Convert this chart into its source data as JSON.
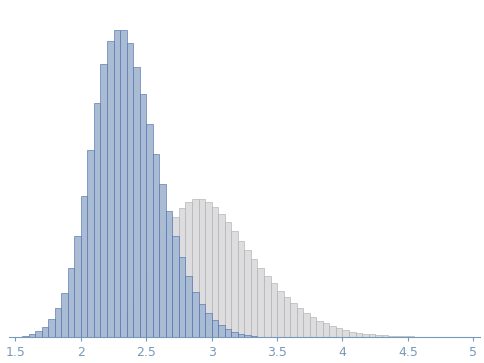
{
  "blue_hist": {
    "bins": [
      1.55,
      1.6,
      1.65,
      1.7,
      1.75,
      1.8,
      1.85,
      1.9,
      1.95,
      2.0,
      2.05,
      2.1,
      2.15,
      2.2,
      2.25,
      2.3,
      2.35,
      2.4,
      2.45,
      2.5,
      2.55,
      2.6,
      2.65,
      2.7,
      2.75,
      2.8,
      2.85,
      2.9,
      2.95,
      3.0,
      3.05,
      3.1,
      3.15,
      3.2,
      3.25,
      3.3
    ],
    "heights": [
      0.002,
      0.006,
      0.012,
      0.022,
      0.038,
      0.062,
      0.095,
      0.148,
      0.218,
      0.305,
      0.405,
      0.505,
      0.59,
      0.64,
      0.665,
      0.665,
      0.635,
      0.585,
      0.525,
      0.46,
      0.395,
      0.33,
      0.272,
      0.218,
      0.172,
      0.132,
      0.098,
      0.072,
      0.052,
      0.036,
      0.025,
      0.016,
      0.01,
      0.006,
      0.004,
      0.002
    ],
    "face_color": "#aabbd4",
    "edge_color": "#4466aa",
    "alpha": 1.0
  },
  "gray_hist": {
    "bins": [
      2.3,
      2.35,
      2.4,
      2.45,
      2.5,
      2.55,
      2.6,
      2.65,
      2.7,
      2.75,
      2.8,
      2.85,
      2.9,
      2.95,
      3.0,
      3.05,
      3.1,
      3.15,
      3.2,
      3.25,
      3.3,
      3.35,
      3.4,
      3.45,
      3.5,
      3.55,
      3.6,
      3.65,
      3.7,
      3.75,
      3.8,
      3.85,
      3.9,
      3.95,
      4.0,
      4.05,
      4.1,
      4.15,
      4.2,
      4.25,
      4.3,
      4.35,
      4.4,
      4.45,
      4.5,
      4.55,
      4.6,
      4.65,
      4.7,
      4.75,
      4.8
    ],
    "heights": [
      0.025,
      0.048,
      0.075,
      0.105,
      0.138,
      0.172,
      0.205,
      0.235,
      0.26,
      0.278,
      0.292,
      0.298,
      0.298,
      0.292,
      0.28,
      0.265,
      0.248,
      0.228,
      0.208,
      0.188,
      0.168,
      0.15,
      0.132,
      0.116,
      0.1,
      0.086,
      0.073,
      0.062,
      0.052,
      0.043,
      0.035,
      0.029,
      0.023,
      0.018,
      0.014,
      0.011,
      0.008,
      0.006,
      0.005,
      0.004,
      0.003,
      0.0022,
      0.0016,
      0.0012,
      0.0009,
      0.0006,
      0.0004,
      0.0003,
      0.0002,
      0.0001,
      5e-05
    ],
    "face_color": "#dddde0",
    "edge_color": "#aaaaaa",
    "alpha": 1.0
  },
  "xlim": [
    1.45,
    5.05
  ],
  "ylim": [
    0,
    0.72
  ],
  "xticks": [
    1.5,
    2.0,
    2.5,
    3.0,
    3.5,
    4.0,
    4.5,
    5.0
  ],
  "tick_labels": [
    "1.5",
    "2",
    "2.5",
    "3",
    "3.5",
    "4",
    "4.5",
    "5"
  ],
  "tick_color": "#7799bb",
  "spine_color": "#7799bb",
  "background_color": "#ffffff",
  "bin_width": 0.05
}
